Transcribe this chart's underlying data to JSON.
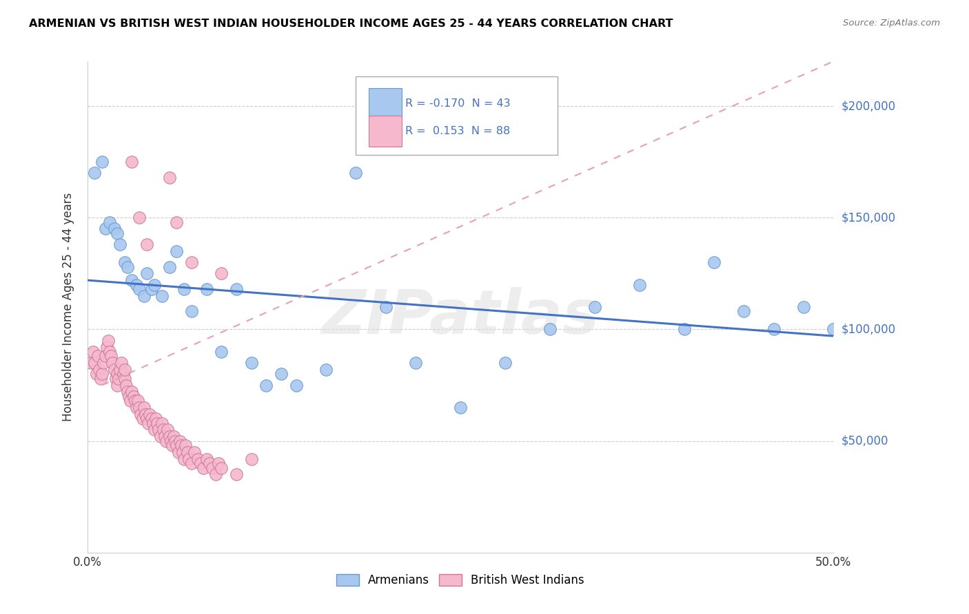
{
  "title": "ARMENIAN VS BRITISH WEST INDIAN HOUSEHOLDER INCOME AGES 25 - 44 YEARS CORRELATION CHART",
  "source": "Source: ZipAtlas.com",
  "ylabel": "Householder Income Ages 25 - 44 years",
  "xlim": [
    0.0,
    0.5
  ],
  "ylim": [
    0,
    220000
  ],
  "yticks": [
    50000,
    100000,
    150000,
    200000
  ],
  "ytick_labels": [
    "$50,000",
    "$100,000",
    "$150,000",
    "$200,000"
  ],
  "armenian_color": "#A8C8F0",
  "armenian_edge": "#6699CC",
  "bwi_color": "#F5B8CC",
  "bwi_edge": "#CC7799",
  "legend_r_armenian": "-0.170",
  "legend_n_armenian": "43",
  "legend_r_bwi": "0.153",
  "legend_n_bwi": "88",
  "arm_trend_color": "#4472C4",
  "bwi_trend_color": "#E8A0B0",
  "armenian_x": [
    0.005,
    0.01,
    0.012,
    0.015,
    0.018,
    0.02,
    0.022,
    0.025,
    0.027,
    0.03,
    0.033,
    0.035,
    0.038,
    0.04,
    0.043,
    0.045,
    0.05,
    0.055,
    0.06,
    0.065,
    0.07,
    0.08,
    0.09,
    0.1,
    0.11,
    0.12,
    0.13,
    0.14,
    0.16,
    0.18,
    0.2,
    0.22,
    0.25,
    0.28,
    0.31,
    0.34,
    0.37,
    0.4,
    0.42,
    0.44,
    0.46,
    0.48,
    0.5
  ],
  "armenian_y": [
    170000,
    175000,
    145000,
    148000,
    145000,
    143000,
    138000,
    130000,
    128000,
    122000,
    120000,
    118000,
    115000,
    125000,
    118000,
    120000,
    115000,
    128000,
    135000,
    118000,
    108000,
    118000,
    90000,
    118000,
    85000,
    75000,
    80000,
    75000,
    82000,
    170000,
    110000,
    85000,
    65000,
    85000,
    100000,
    110000,
    120000,
    100000,
    130000,
    108000,
    100000,
    110000,
    100000
  ],
  "bwi_x": [
    0.002,
    0.004,
    0.005,
    0.006,
    0.007,
    0.008,
    0.009,
    0.01,
    0.011,
    0.012,
    0.013,
    0.014,
    0.015,
    0.016,
    0.017,
    0.018,
    0.019,
    0.02,
    0.02,
    0.021,
    0.022,
    0.023,
    0.024,
    0.025,
    0.025,
    0.026,
    0.027,
    0.028,
    0.029,
    0.03,
    0.031,
    0.032,
    0.033,
    0.034,
    0.035,
    0.036,
    0.037,
    0.038,
    0.039,
    0.04,
    0.041,
    0.042,
    0.043,
    0.044,
    0.045,
    0.046,
    0.047,
    0.048,
    0.049,
    0.05,
    0.051,
    0.052,
    0.053,
    0.054,
    0.055,
    0.056,
    0.057,
    0.058,
    0.059,
    0.06,
    0.061,
    0.062,
    0.063,
    0.064,
    0.065,
    0.066,
    0.067,
    0.068,
    0.07,
    0.072,
    0.074,
    0.076,
    0.078,
    0.08,
    0.082,
    0.084,
    0.086,
    0.088,
    0.09,
    0.1,
    0.03,
    0.035,
    0.04,
    0.06,
    0.055,
    0.07,
    0.09,
    0.11
  ],
  "bwi_y": [
    85000,
    90000,
    85000,
    80000,
    88000,
    82000,
    78000,
    80000,
    85000,
    88000,
    92000,
    95000,
    90000,
    88000,
    85000,
    82000,
    78000,
    75000,
    80000,
    78000,
    82000,
    85000,
    80000,
    78000,
    82000,
    75000,
    72000,
    70000,
    68000,
    72000,
    70000,
    68000,
    65000,
    68000,
    65000,
    62000,
    60000,
    65000,
    62000,
    60000,
    58000,
    62000,
    60000,
    58000,
    55000,
    60000,
    58000,
    55000,
    52000,
    58000,
    55000,
    52000,
    50000,
    55000,
    52000,
    50000,
    48000,
    52000,
    50000,
    48000,
    45000,
    50000,
    48000,
    45000,
    42000,
    48000,
    45000,
    42000,
    40000,
    45000,
    42000,
    40000,
    38000,
    42000,
    40000,
    38000,
    35000,
    40000,
    38000,
    35000,
    175000,
    150000,
    138000,
    148000,
    168000,
    130000,
    125000,
    42000
  ],
  "watermark": "ZIPatlas"
}
